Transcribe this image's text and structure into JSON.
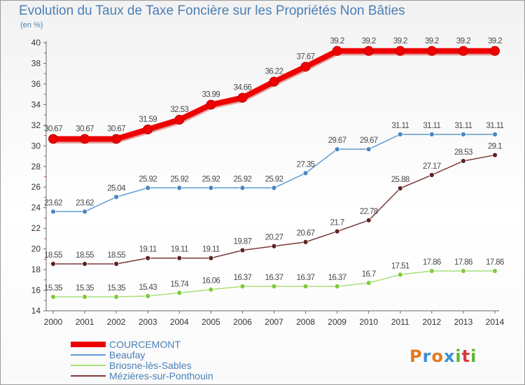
{
  "title": "Evolution du Taux de Taxe Foncière sur les Propriétés Non Bâties",
  "unit": "(en %)",
  "logo": {
    "text": "Proxiti",
    "colors": [
      "#e07b1f",
      "#3a8fd6",
      "#e07b1f",
      "#3a8fd6",
      "#5ab82e",
      "#d63a3a",
      "#5ab82e"
    ]
  },
  "chart_data": {
    "type": "line",
    "x": [
      "2000",
      "2001",
      "2002",
      "2003",
      "2004",
      "2005",
      "2006",
      "2007",
      "2008",
      "2009",
      "2010",
      "2011",
      "2012",
      "2013",
      "2014"
    ],
    "ylim": [
      14,
      40
    ],
    "yticks": [
      14,
      16,
      18,
      20,
      22,
      24,
      26,
      28,
      30,
      32,
      34,
      36,
      38,
      40
    ],
    "grid": false,
    "legend_position": "bottom-left",
    "series": [
      {
        "name": "COURCEMONT",
        "color": "#ee0000",
        "emphasis": true,
        "values": [
          30.67,
          30.67,
          30.67,
          31.59,
          32.53,
          33.99,
          34.66,
          36.22,
          37.67,
          39.2,
          39.2,
          39.2,
          39.2,
          39.2,
          39.2
        ],
        "labels": [
          "30.67",
          "30.67",
          "30.67",
          "31.59",
          "32.53",
          "33.99",
          "34.66",
          "36.22",
          "37.67",
          "39.2",
          "39.2",
          "39.2",
          "39.2",
          "39.2",
          "39.2"
        ]
      },
      {
        "name": "Beaufay",
        "color": "#5b9bd5",
        "marker": "#4a86c0",
        "values": [
          23.62,
          23.62,
          25.04,
          25.92,
          25.92,
          25.92,
          25.92,
          25.92,
          27.35,
          29.67,
          29.67,
          31.11,
          31.11,
          31.11,
          31.11
        ],
        "labels": [
          "23.62",
          "23.62",
          "25.04",
          "25.92",
          "25.92",
          "25.92",
          "25.92",
          "25.92",
          "27.35",
          "29.67",
          "29.67",
          "31.11",
          "31.11",
          "31.11",
          "31.11"
        ]
      },
      {
        "name": "Briosne-lès-Sables",
        "color": "#a8e07a",
        "marker": "#7ecb3a",
        "values": [
          15.35,
          15.35,
          15.35,
          15.43,
          15.74,
          16.06,
          16.37,
          16.37,
          16.37,
          16.37,
          16.7,
          17.51,
          17.86,
          17.86,
          17.86
        ],
        "labels": [
          "15.35",
          "15.35",
          "15.35",
          "15.43",
          "15.74",
          "16.06",
          "16.37",
          "16.37",
          "16.37",
          "16.37",
          "16.7",
          "17.51",
          "17.86",
          "17.86",
          "17.86"
        ]
      },
      {
        "name": "Mézières-sur-Ponthouin",
        "color": "#7a3a3a",
        "marker": "#5e2424",
        "values": [
          18.55,
          18.55,
          18.55,
          19.11,
          19.11,
          19.11,
          19.87,
          20.27,
          20.67,
          21.7,
          22.78,
          25.88,
          27.17,
          28.53,
          29.1
        ],
        "labels": [
          "18.55",
          "18.55",
          "18.55",
          "19.11",
          "19.11",
          "19.11",
          "19.87",
          "20.27",
          "20.67",
          "21.7",
          "22.78",
          "25.88",
          "27.17",
          "28.53",
          "29.1"
        ]
      }
    ]
  }
}
